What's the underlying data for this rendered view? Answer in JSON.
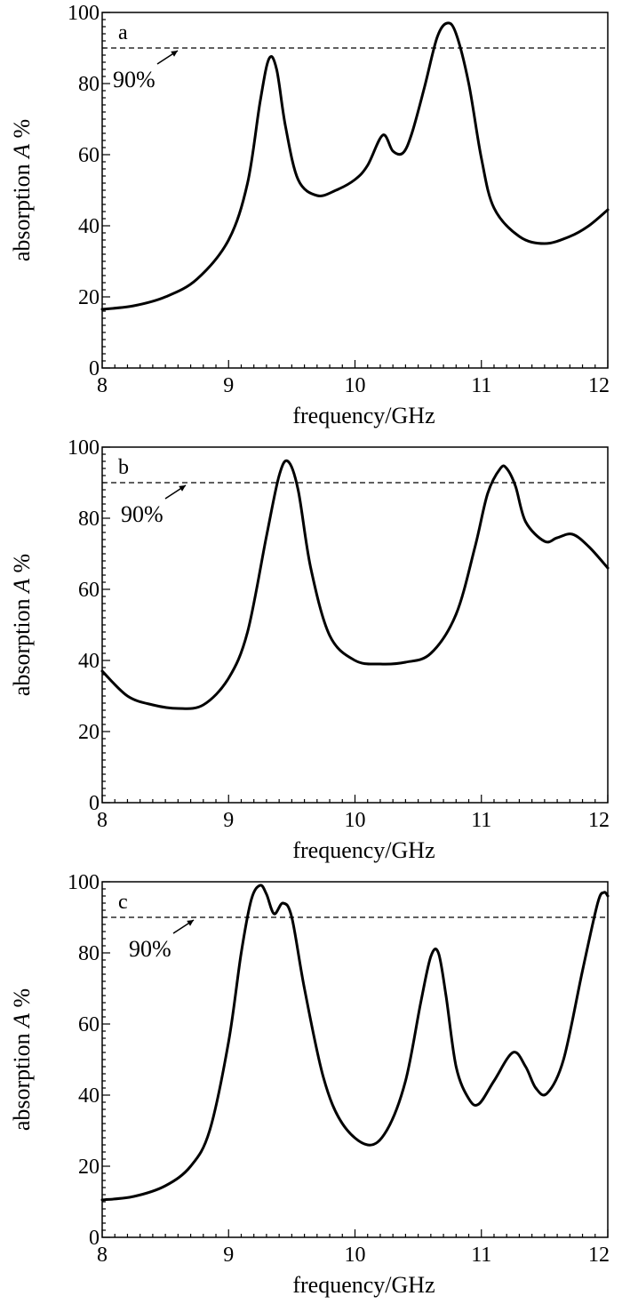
{
  "chart_data": [
    {
      "type": "line",
      "panel_label": "a",
      "xlabel": "frequency/GHz",
      "ylabel_prefix": "absorption ",
      "ylabel_symbol": "A",
      "ylabel_suffix": " %",
      "xlim": [
        8,
        12
      ],
      "ylim": [
        0,
        100
      ],
      "xticks": [
        "8",
        "9",
        "10",
        "11",
        "12"
      ],
      "yticks": [
        "0",
        "20",
        "40",
        "60",
        "80",
        "100"
      ],
      "reference_line": {
        "y": 90,
        "label": "90%"
      },
      "grid": false,
      "series": [
        {
          "x": [
            8.0,
            8.25,
            8.5,
            8.75,
            9.0,
            9.15,
            9.25,
            9.32,
            9.38,
            9.45,
            9.55,
            9.7,
            9.85,
            10.0,
            10.1,
            10.22,
            10.3,
            10.38,
            10.45,
            10.55,
            10.65,
            10.73,
            10.8,
            10.9,
            11.0,
            11.1,
            11.3,
            11.5,
            11.7,
            11.85,
            12.0
          ],
          "y": [
            16.5,
            17.5,
            20,
            25,
            36,
            52,
            75,
            87,
            84,
            68,
            53,
            48.5,
            50,
            53,
            57,
            65.5,
            61,
            60.5,
            66,
            79,
            93,
            97,
            94,
            80,
            59,
            45,
            37,
            35,
            37,
            40,
            44.5
          ]
        }
      ]
    },
    {
      "type": "line",
      "panel_label": "b",
      "xlabel": "frequency/GHz",
      "ylabel_prefix": "absorption ",
      "ylabel_symbol": "A",
      "ylabel_suffix": " %",
      "xlim": [
        8,
        12
      ],
      "ylim": [
        0,
        100
      ],
      "xticks": [
        "8",
        "9",
        "10",
        "11",
        "12"
      ],
      "yticks": [
        "0",
        "20",
        "40",
        "60",
        "80",
        "100"
      ],
      "reference_line": {
        "y": 90,
        "label": "90%"
      },
      "grid": false,
      "series": [
        {
          "x": [
            8.0,
            8.2,
            8.4,
            8.6,
            8.8,
            9.0,
            9.15,
            9.3,
            9.4,
            9.47,
            9.55,
            9.65,
            9.8,
            10.0,
            10.2,
            10.4,
            10.6,
            10.8,
            10.95,
            11.05,
            11.15,
            11.2,
            11.27,
            11.35,
            11.5,
            11.6,
            11.72,
            11.85,
            12.0
          ],
          "y": [
            37,
            30,
            27.5,
            26.5,
            27.5,
            35,
            48,
            75,
            92,
            96,
            88,
            66,
            47,
            40,
            39,
            39.5,
            42,
            53,
            72,
            87,
            94,
            94,
            89,
            79,
            73.5,
            74.5,
            75.5,
            72,
            66
          ]
        }
      ]
    },
    {
      "type": "line",
      "panel_label": "c",
      "xlabel": "frequency/GHz",
      "ylabel_prefix": "absorption ",
      "ylabel_symbol": "A",
      "ylabel_suffix": " %",
      "xlim": [
        8,
        12
      ],
      "ylim": [
        0,
        100
      ],
      "xticks": [
        "8",
        "9",
        "10",
        "11",
        "12"
      ],
      "yticks": [
        "0",
        "20",
        "40",
        "60",
        "80",
        "100"
      ],
      "reference_line": {
        "y": 90,
        "label": "90%"
      },
      "grid": false,
      "series": [
        {
          "x": [
            8.0,
            8.25,
            8.5,
            8.7,
            8.85,
            9.0,
            9.1,
            9.18,
            9.25,
            9.3,
            9.36,
            9.43,
            9.5,
            9.6,
            9.75,
            9.9,
            10.1,
            10.25,
            10.4,
            10.52,
            10.6,
            10.66,
            10.72,
            10.8,
            10.9,
            10.98,
            11.1,
            11.25,
            11.35,
            11.43,
            11.52,
            11.65,
            11.8,
            11.92,
            11.97,
            12.0
          ],
          "y": [
            10.5,
            11.5,
            14.5,
            20,
            30,
            55,
            80,
            95,
            99,
            96.5,
            91,
            94,
            90,
            70,
            45,
            32,
            26,
            30,
            44,
            66,
            79,
            80,
            68,
            48,
            39,
            37.5,
            44,
            52,
            48,
            42,
            40.5,
            50,
            75,
            94,
            97,
            96
          ]
        }
      ]
    }
  ]
}
